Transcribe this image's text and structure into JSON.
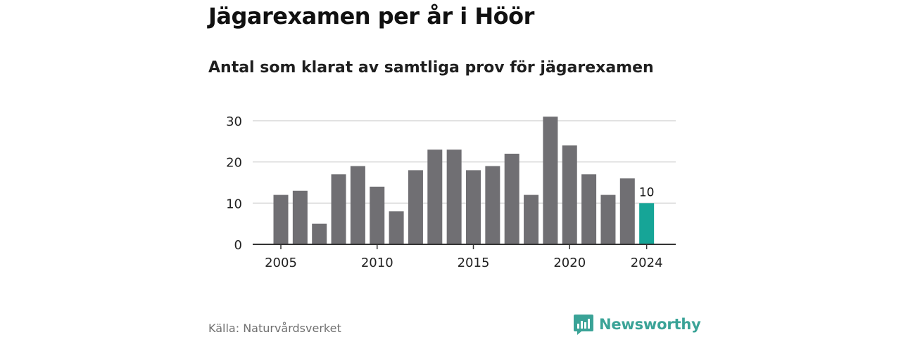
{
  "header": {
    "title": "Jägarexamen per år i Höör",
    "subtitle": "Antal som klarat av samtliga prov för jägarexamen"
  },
  "footer": {
    "source": "Källa: Naturvårdsverket",
    "brand": "Newsworthy"
  },
  "colors": {
    "bar": "#706f73",
    "highlight": "#16a597",
    "grid": "#d9d9d9",
    "axis": "#333333",
    "brand": "#3aa397"
  },
  "chart_data": {
    "type": "bar",
    "title": "Jägarexamen per år i Höör",
    "subtitle": "Antal som klarat av samtliga prov för jägarexamen",
    "xlabel": "",
    "ylabel": "",
    "categories": [
      2005,
      2006,
      2007,
      2008,
      2009,
      2010,
      2011,
      2012,
      2013,
      2014,
      2015,
      2016,
      2017,
      2018,
      2019,
      2020,
      2021,
      2022,
      2023,
      2024
    ],
    "values": [
      12,
      13,
      5,
      17,
      19,
      14,
      8,
      18,
      23,
      23,
      18,
      19,
      22,
      12,
      31,
      24,
      17,
      12,
      16,
      10
    ],
    "highlight": {
      "category": 2024,
      "label": "10"
    },
    "xticks": [
      2005,
      2010,
      2015,
      2020,
      2024
    ],
    "yticks": [
      0,
      10,
      20,
      30
    ],
    "ylim": [
      0,
      32
    ],
    "grid": true,
    "legend": "none"
  }
}
